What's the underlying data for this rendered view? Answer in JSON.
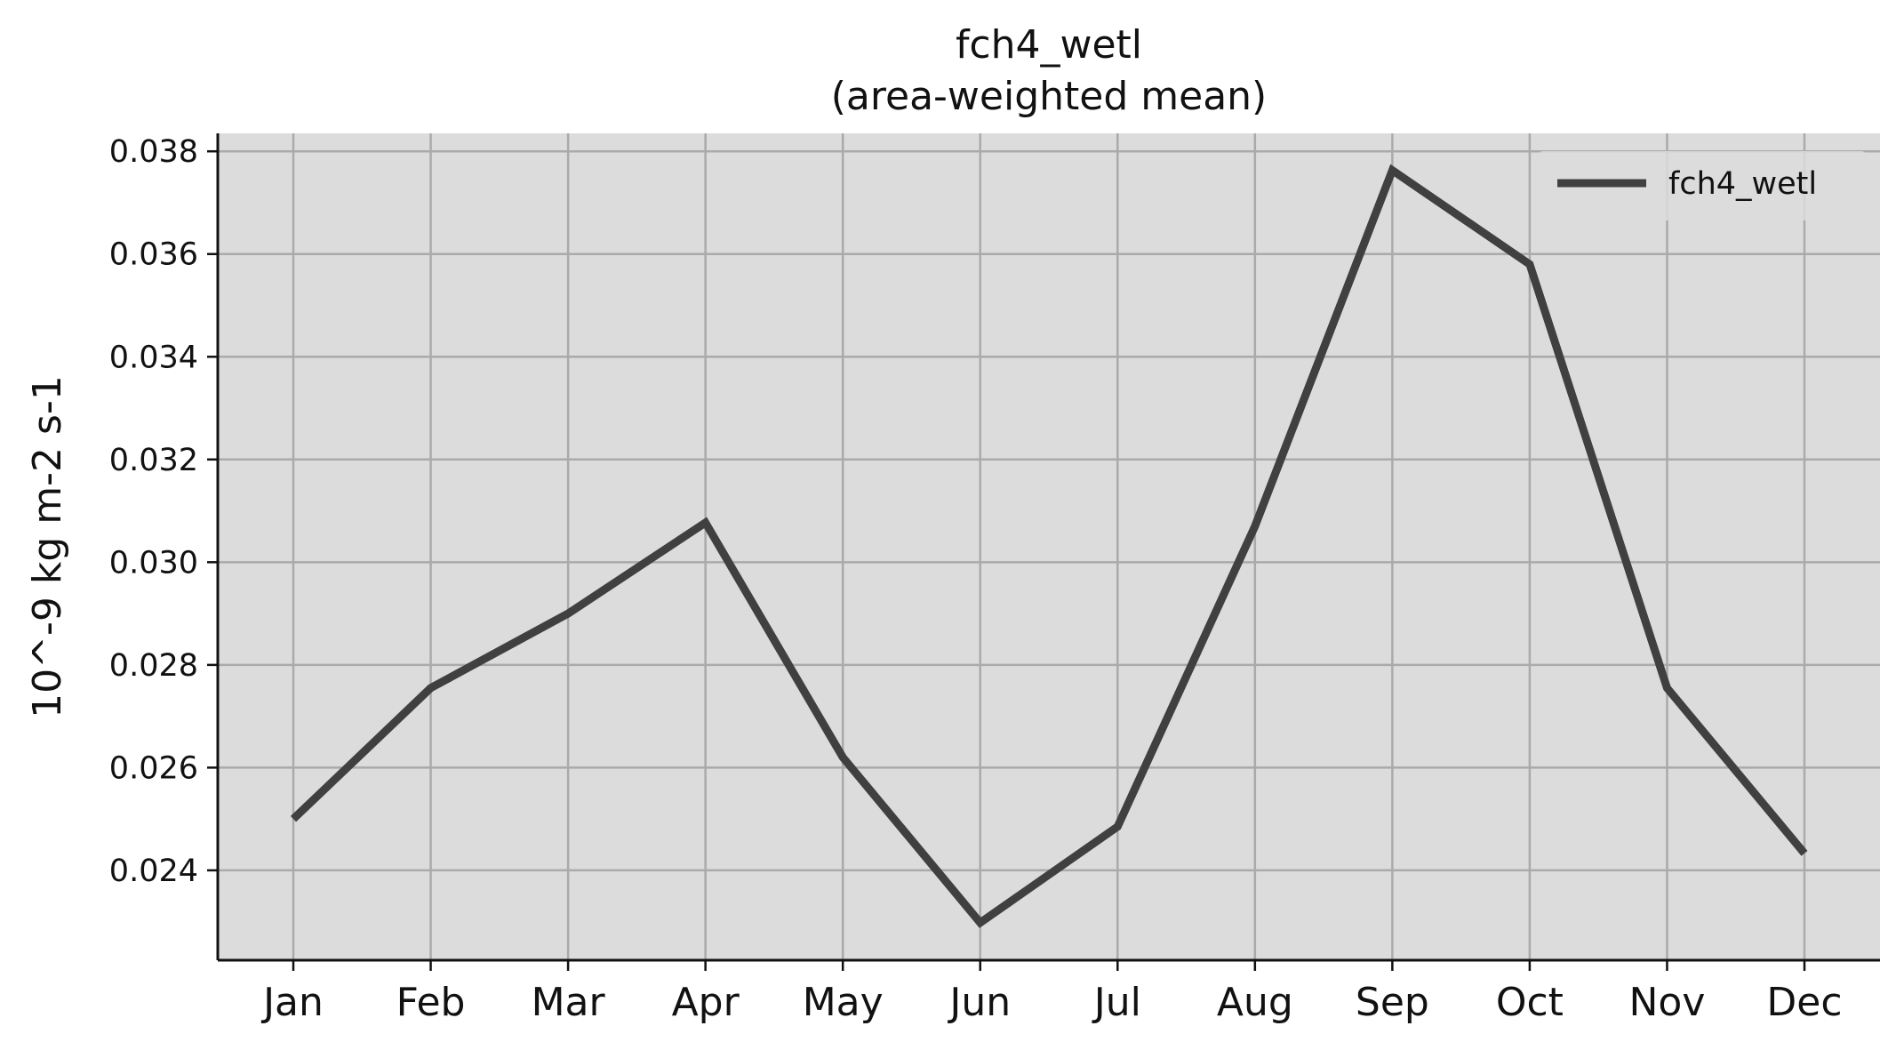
{
  "chart_data": {
    "type": "line",
    "title": "fch4_wetl",
    "subtitle": "(area-weighted mean)",
    "xlabel": "",
    "ylabel": "10^-9 kg m-2 s-1",
    "categories": [
      "Jan",
      "Feb",
      "Mar",
      "Apr",
      "May",
      "Jun",
      "Jul",
      "Aug",
      "Sep",
      "Oct",
      "Nov",
      "Dec"
    ],
    "series": [
      {
        "name": "fch4_wetl",
        "color": "#404040",
        "values": [
          0.025,
          0.02755,
          0.029,
          0.03077,
          0.0262,
          0.02298,
          0.02485,
          0.0307,
          0.03763,
          0.0358,
          0.02755,
          0.02433
        ]
      }
    ],
    "ylim": [
      0.02225,
      0.03835
    ],
    "yticks": [
      0.024,
      0.026,
      0.028,
      0.03,
      0.032,
      0.034,
      0.036,
      0.038
    ],
    "ytick_labels": [
      "0.024",
      "0.026",
      "0.028",
      "0.030",
      "0.032",
      "0.034",
      "0.036",
      "0.038"
    ],
    "grid": true,
    "legend": {
      "position": "top-right",
      "entries": [
        "fch4_wetl"
      ]
    },
    "background_color": "#dcdcdc"
  }
}
